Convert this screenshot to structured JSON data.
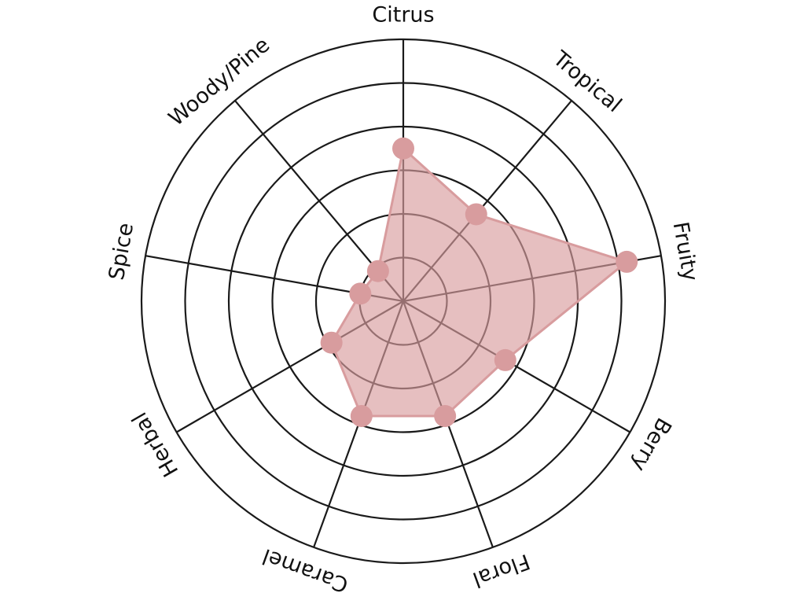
{
  "chart_data": {
    "type": "radar",
    "categories": [
      "Citrus",
      "Tropical",
      "Fruity",
      "Berry",
      "Floral",
      "Caramel",
      "Herbal",
      "Spice",
      "Woody/Pine"
    ],
    "series": [
      {
        "color": "#d89c9e",
        "values": [
          3.5,
          2.6,
          5.2,
          2.7,
          2.8,
          2.8,
          1.9,
          1.0,
          0.9
        ]
      }
    ],
    "rlim": [
      0,
      6
    ],
    "rticks": [
      1,
      2,
      3,
      4,
      5,
      6
    ],
    "grid": true
  }
}
